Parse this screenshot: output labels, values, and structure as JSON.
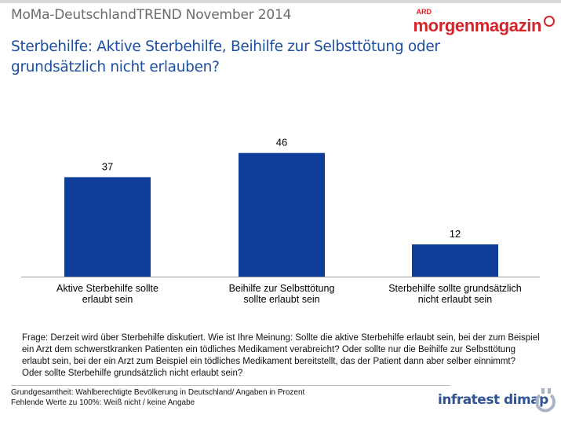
{
  "header": {
    "survey_title": "MoMa-DeutschlandTREND November 2014",
    "question_title_line1": "Sterbehilfe: Aktive Sterbehilfe, Beihilfe zur Selbsttötung oder",
    "question_title_line2": "grundsätzlich nicht erlauben?"
  },
  "brand": {
    "ard": "ARD",
    "name": "morgenmagazin"
  },
  "chart_data": {
    "type": "bar",
    "categories": [
      [
        "Aktive Sterbehilfe sollte",
        "erlaubt sein"
      ],
      [
        "Beihilfe zur Selbsttötung",
        "sollte erlaubt sein"
      ],
      [
        "Sterbehilfe sollte grundsätzlich",
        "nicht erlaubt sein"
      ]
    ],
    "values": [
      37,
      46,
      12
    ],
    "ylim": [
      0,
      50
    ],
    "grid": false,
    "legend": "none",
    "bar_color": "#0d3c99"
  },
  "question_text": [
    "Frage: Derzeit wird über Sterbehilfe diskutiert. Wie ist Ihre Meinung: Sollte die aktive Sterbehilfe erlaubt sein, bei der zum Beispiel",
    "ein Arzt dem schwerstkranken Patienten ein tödliches Medikament verabreicht? Oder sollte nur die Beihilfe zur Selbsttötung",
    "erlaubt sein, bei der ein Arzt zum Beispiel ein tödliches Medikament bereitstellt, das der Patient dann aber selber einnimmt?",
    "Oder sollte Sterbehilfe grundsätzlich nicht erlaubt sein?"
  ],
  "footer": {
    "note_line1": "Grundgesamtheit: Wahlberechtigte Bevölkerung in Deutschland/ Angaben in Prozent",
    "note_line2": "Fehlende Werte zu 100%: Weiß nicht / keine Angabe",
    "institute": "infratest dimap",
    "institute_logo_icon": "infratest-dimap-logo-icon"
  }
}
